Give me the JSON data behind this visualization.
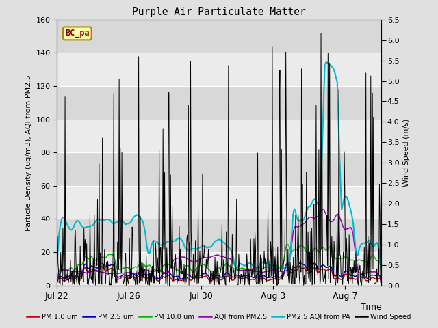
{
  "title": "Purple Air Particulate Matter",
  "ylabel_left": "Particle Density (ug/m3), AQI from PM2.5",
  "ylabel_right": "Wind Speed (m/s)",
  "xlabel": "Time",
  "ylim_left": [
    0,
    160
  ],
  "ylim_right": [
    0,
    6.5
  ],
  "yticks_left": [
    0,
    20,
    40,
    60,
    80,
    100,
    120,
    140,
    160
  ],
  "yticks_right": [
    0.0,
    0.5,
    1.0,
    1.5,
    2.0,
    2.5,
    3.0,
    3.5,
    4.0,
    4.5,
    5.0,
    5.5,
    6.0,
    6.5
  ],
  "xtick_labels": [
    "Jul 22",
    "Jul 26",
    "Jul 30",
    "Aug 3",
    "Aug 7"
  ],
  "annotation_text": "BC_pa",
  "bg_color": "#e0e0e0",
  "plot_bg_light": "#ebebeb",
  "plot_bg_dark": "#d8d8d8",
  "legend_entries": [
    {
      "label": "PM 1.0 um",
      "color": "#cc0000"
    },
    {
      "label": "PM 2.5 um",
      "color": "#0000cc"
    },
    {
      "label": "PM 10.0 um",
      "color": "#00bb00"
    },
    {
      "label": "AQI from PM2.5",
      "color": "#9900bb"
    },
    {
      "label": "PM2.5 AQI from PA",
      "color": "#00bbcc"
    },
    {
      "label": "Wind Speed",
      "color": "#000000"
    }
  ],
  "n_points": 600,
  "random_seed": 42
}
